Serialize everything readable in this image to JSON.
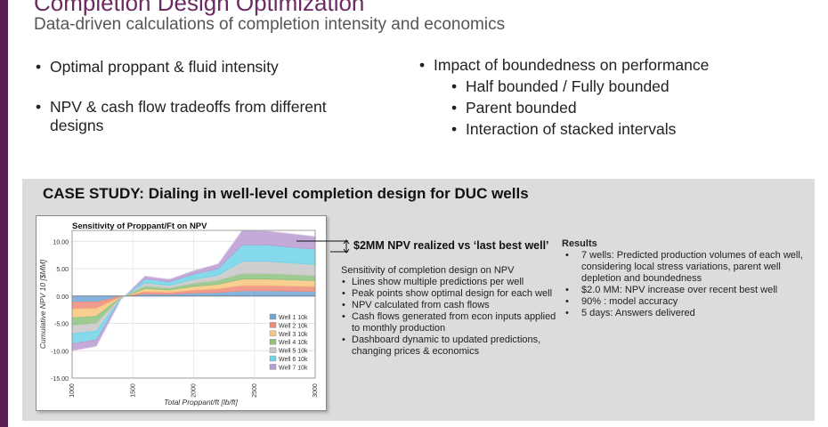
{
  "slide": {
    "title": "Completion Design Optimization",
    "subtitle": "Data-driven calculations of completion intensity and economics",
    "accent_color": "#5a1f52"
  },
  "left_bullets": [
    "Optimal proppant & fluid intensity",
    "NPV & cash flow tradeoffs from different designs"
  ],
  "right_bullets": {
    "main": "Impact of boundedness on performance",
    "sub": [
      "Half bounded / Fully bounded",
      "Parent bounded",
      "Interaction of stacked intervals"
    ]
  },
  "case_study": {
    "title": "CASE STUDY: Dialing in well-level completion design for DUC wells",
    "annotation": "$2MM NPV realized vs ‘last best well’",
    "sensitivity": {
      "header": "Sensitivity of completion design on NPV",
      "bullets": [
        "Lines show multiple predictions per well",
        "Peak points show optimal design for each well",
        "NPV calculated from cash flows",
        "Cash flows generated from econ inputs applied to monthly production",
        "Dashboard dynamic to updated predictions, changing prices & economics"
      ]
    },
    "results": {
      "header": "Results",
      "items": [
        "7 wells: Predicted production volumes of each well, considering local stress variations, parent well depletion and boundedness",
        "$2.0 MM: NPV increase over recent best well",
        "90% : model accuracy",
        "5 days: Answers delivered"
      ]
    }
  },
  "chart_data": {
    "type": "area",
    "title": "Sensitivity of Proppant/Ft on NPV",
    "xlabel": "Total Proppant/ft [lb/ft]",
    "ylabel": "Cumulative NPV 10 [$MM]",
    "xlim": [
      1000,
      3000
    ],
    "ylim": [
      -15,
      12
    ],
    "x_ticks": [
      "1000",
      "1500",
      "2000",
      "2500",
      "3000"
    ],
    "y_ticks": [
      "10.00",
      "5.00",
      "0.00",
      "-5.00",
      "-10.00",
      "-15.00"
    ],
    "y_tick_values": [
      10,
      5,
      0,
      -5,
      -10,
      -15
    ],
    "legend_position": "bottom-right",
    "stacked": true,
    "x": [
      1000,
      1200,
      1400,
      1600,
      1800,
      2000,
      2200,
      2400,
      2600,
      2800,
      3000
    ],
    "series": [
      {
        "name": "Well 1 10k",
        "color": "#6ea6d8",
        "values": [
          -1.1,
          -1.1,
          -0.1,
          0.4,
          0.35,
          0.55,
          0.65,
          0.95,
          0.95,
          0.9,
          0.85
        ]
      },
      {
        "name": "Well 2 10k",
        "color": "#ef8a78",
        "values": [
          -1.3,
          -1.2,
          -0.1,
          0.45,
          0.35,
          0.55,
          0.7,
          1.0,
          1.0,
          0.95,
          0.9
        ]
      },
      {
        "name": "Well 3 10k",
        "color": "#f7c77d",
        "values": [
          -1.6,
          -1.4,
          -0.1,
          0.5,
          0.4,
          0.65,
          0.8,
          1.15,
          1.15,
          1.1,
          1.05
        ]
      },
      {
        "name": "Well 4 10k",
        "color": "#8dc27f",
        "values": [
          -1.4,
          -1.3,
          -0.1,
          0.5,
          0.4,
          0.6,
          0.75,
          1.05,
          1.05,
          1.0,
          0.95
        ]
      },
      {
        "name": "Well 5 10k",
        "color": "#c7c7c7",
        "values": [
          -1.5,
          -1.4,
          -0.1,
          0.55,
          0.45,
          0.7,
          0.9,
          2.2,
          2.2,
          2.1,
          2.0
        ]
      },
      {
        "name": "Well 6 10k",
        "color": "#6fd3e8",
        "values": [
          -1.8,
          -1.6,
          -0.1,
          0.75,
          0.65,
          0.95,
          1.2,
          3.0,
          3.0,
          2.9,
          2.8
        ]
      },
      {
        "name": "Well 7 10k",
        "color": "#b89bd1",
        "values": [
          -1.3,
          -1.2,
          -0.1,
          0.5,
          0.45,
          0.65,
          0.85,
          2.65,
          2.55,
          2.45,
          2.35
        ]
      }
    ]
  }
}
